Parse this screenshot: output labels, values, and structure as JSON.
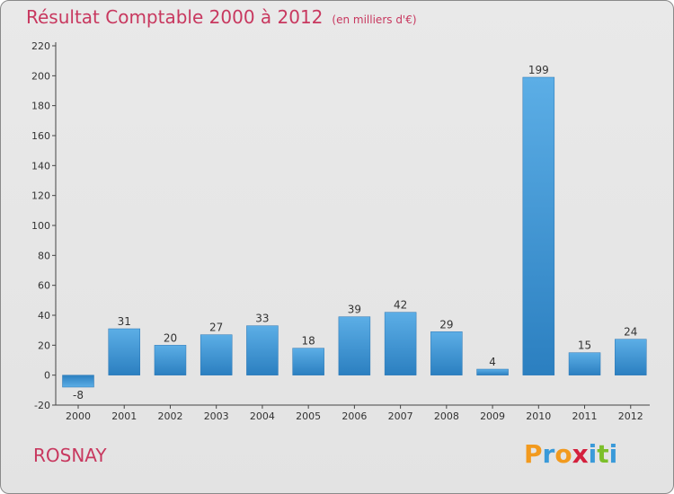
{
  "chart_data": {
    "type": "bar",
    "title": "Résultat Comptable 2000 à 2012",
    "subtitle": "(en milliers d'€)",
    "xlabel": "",
    "ylabel": "",
    "categories": [
      "2000",
      "2001",
      "2002",
      "2003",
      "2004",
      "2005",
      "2006",
      "2007",
      "2008",
      "2009",
      "2010",
      "2011",
      "2012"
    ],
    "values": [
      -8,
      31,
      20,
      27,
      33,
      18,
      39,
      42,
      29,
      4,
      199,
      15,
      24
    ],
    "ylim": [
      -20,
      220
    ],
    "yticks": [
      -20,
      0,
      20,
      40,
      60,
      80,
      100,
      120,
      140,
      160,
      180,
      200,
      220
    ],
    "grid": false,
    "bar_color": "#3d93d6"
  },
  "footer": {
    "commune": "ROSNAY",
    "logo_letters": [
      "P",
      "r",
      "o",
      "x",
      "i",
      "t",
      "i"
    ],
    "logo_colors": [
      "#f29a1e",
      "#3a9ad9",
      "#f29a1e",
      "#d4203d",
      "#3a9ad9",
      "#7cbf2a",
      "#3a9ad9"
    ]
  },
  "colors": {
    "title": "#c8385f",
    "axis": "#444444"
  }
}
